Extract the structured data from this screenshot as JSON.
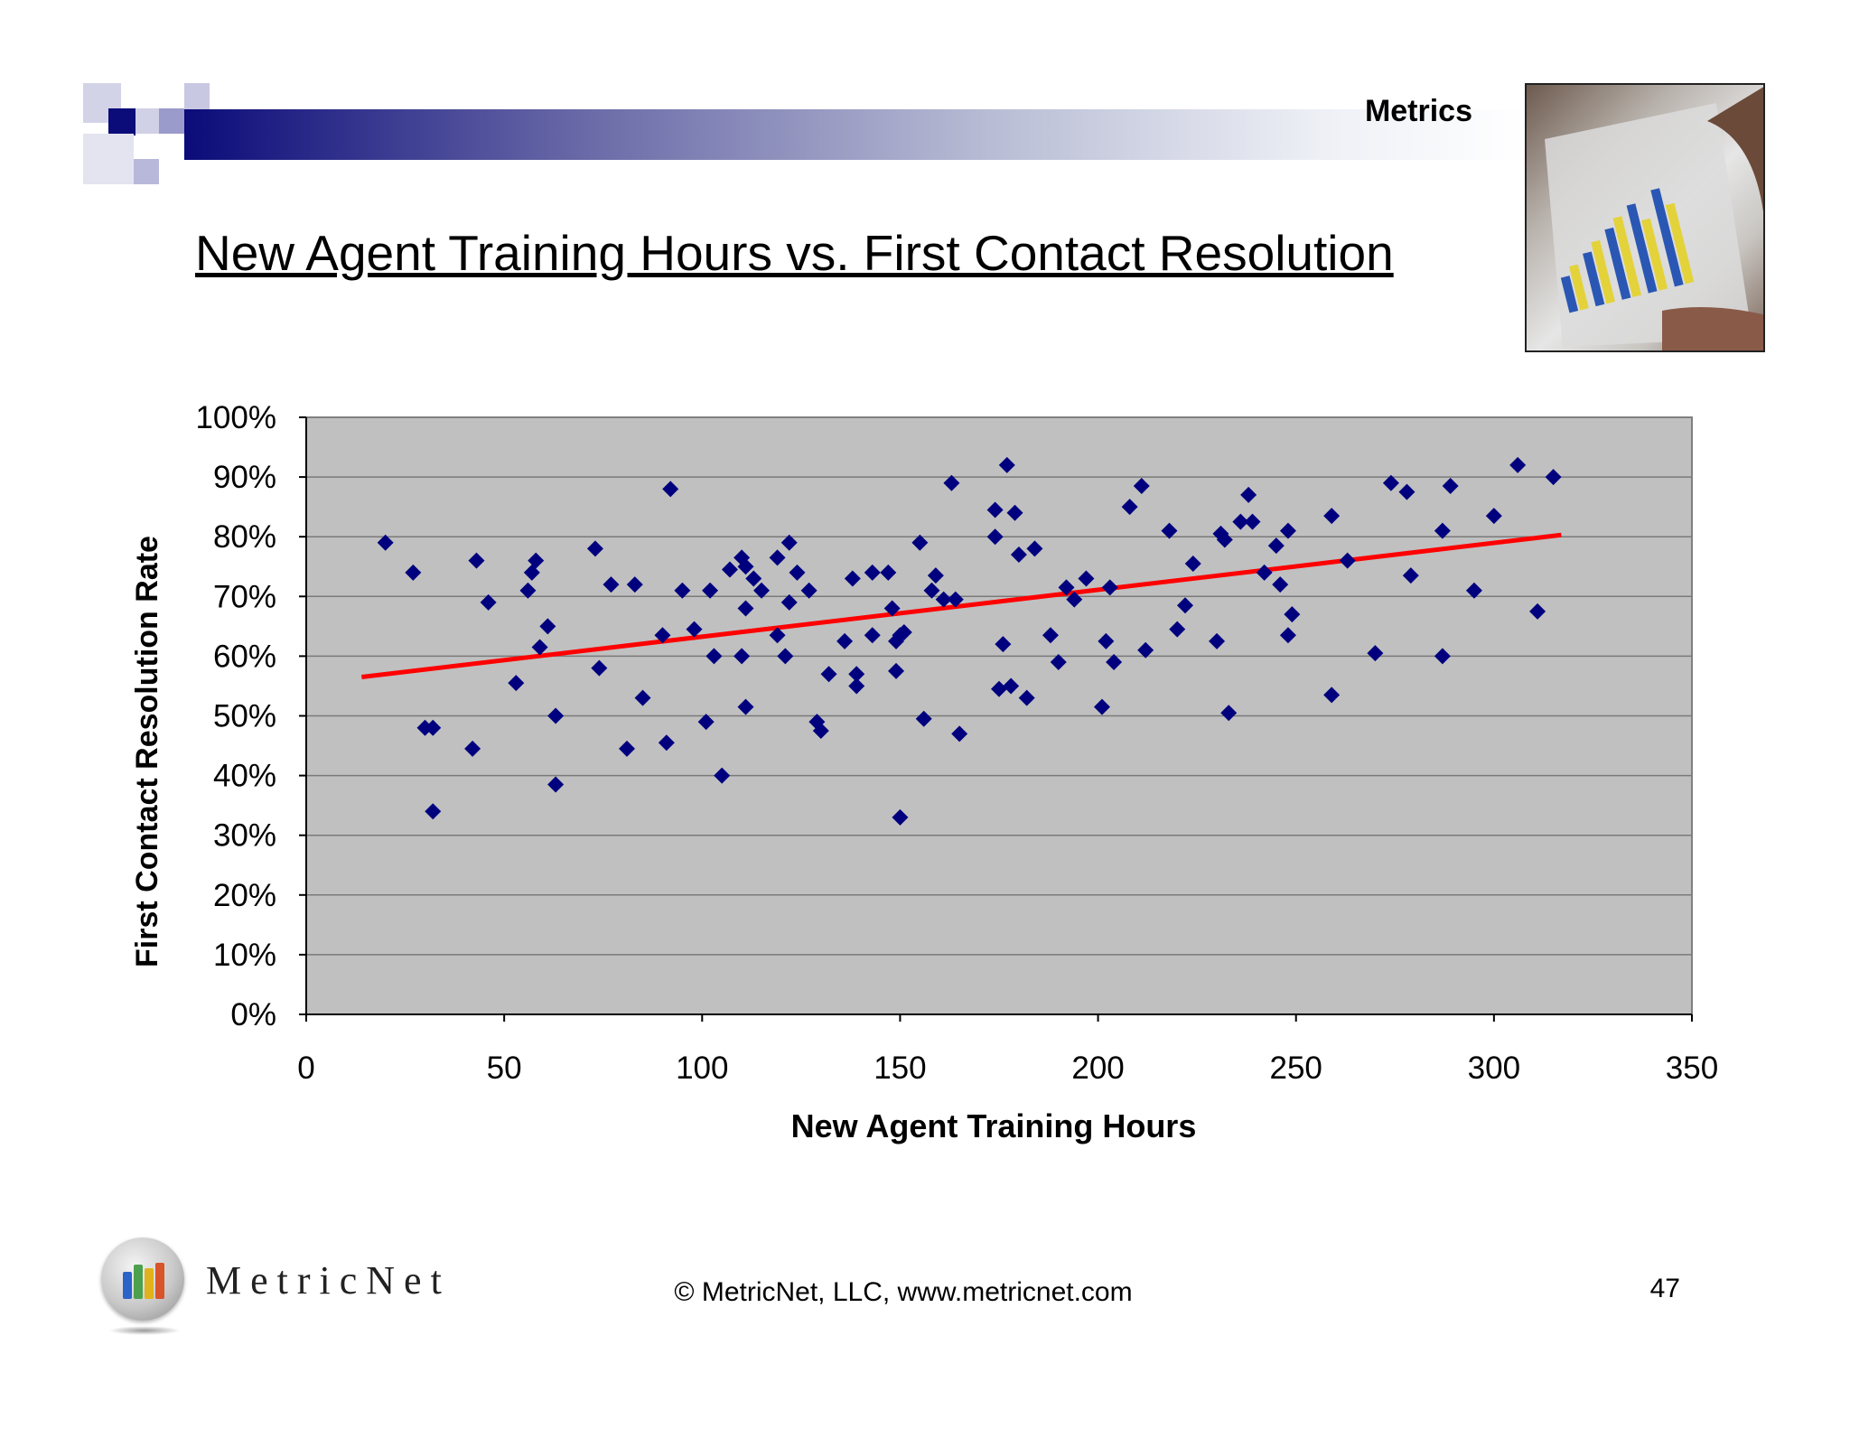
{
  "header": {
    "section_label": "Metrics"
  },
  "title": "New Agent Training Hours vs. First Contact Resolution",
  "footer": {
    "copyright": "© MetricNet, LLC, www.metricnet.com",
    "page_number": "47",
    "brand": "MetricNet"
  },
  "colors": {
    "points": "#00007f",
    "trendline": "#ff0000",
    "plot_bg": "#c0c0c0",
    "header_start": "#0b0b7a"
  },
  "chart_data": {
    "type": "scatter",
    "xlabel": "New Agent Training Hours",
    "ylabel": "First Contact Resolution Rate",
    "xlim": [
      0,
      350
    ],
    "ylim": [
      0,
      100
    ],
    "x_ticks": [
      "0",
      "50",
      "100",
      "150",
      "200",
      "250",
      "300",
      "350"
    ],
    "y_ticks": [
      "0%",
      "10%",
      "20%",
      "30%",
      "40%",
      "50%",
      "60%",
      "70%",
      "80%",
      "90%",
      "100%"
    ],
    "grid": true,
    "legend": "none",
    "trendline": {
      "x": [
        14,
        317
      ],
      "y": [
        56.5,
        80.3
      ]
    },
    "points": [
      [
        20,
        79
      ],
      [
        27,
        74
      ],
      [
        30,
        48
      ],
      [
        32,
        48
      ],
      [
        32,
        34
      ],
      [
        42,
        44.5
      ],
      [
        43,
        76
      ],
      [
        46,
        69
      ],
      [
        53,
        55.5
      ],
      [
        56,
        71
      ],
      [
        57,
        74
      ],
      [
        58,
        76
      ],
      [
        59,
        61.5
      ],
      [
        61,
        65
      ],
      [
        63,
        50
      ],
      [
        63,
        38.5
      ],
      [
        73,
        78
      ],
      [
        74,
        58
      ],
      [
        77,
        72
      ],
      [
        81,
        44.5
      ],
      [
        83,
        72
      ],
      [
        85,
        53
      ],
      [
        90,
        63.5
      ],
      [
        91,
        45.5
      ],
      [
        92,
        88
      ],
      [
        95,
        71
      ],
      [
        98,
        64.5
      ],
      [
        101,
        49
      ],
      [
        102,
        71
      ],
      [
        103,
        60
      ],
      [
        105,
        40
      ],
      [
        107,
        74.5
      ],
      [
        110,
        76.5
      ],
      [
        110,
        60
      ],
      [
        111,
        75
      ],
      [
        111,
        68
      ],
      [
        111,
        51.5
      ],
      [
        113,
        73
      ],
      [
        115,
        71
      ],
      [
        119,
        76.5
      ],
      [
        119,
        63.5
      ],
      [
        121,
        60
      ],
      [
        122,
        69
      ],
      [
        122,
        79
      ],
      [
        124,
        74
      ],
      [
        127,
        71
      ],
      [
        129,
        49
      ],
      [
        130,
        47.5
      ],
      [
        132,
        57
      ],
      [
        136,
        62.5
      ],
      [
        138,
        73
      ],
      [
        139,
        55
      ],
      [
        139,
        57
      ],
      [
        143,
        74
      ],
      [
        143,
        63.5
      ],
      [
        147,
        74
      ],
      [
        148,
        68
      ],
      [
        149,
        62.5
      ],
      [
        149,
        57.5
      ],
      [
        150,
        33
      ],
      [
        150,
        63.5
      ],
      [
        151,
        64
      ],
      [
        155,
        79
      ],
      [
        156,
        49.5
      ],
      [
        158,
        71
      ],
      [
        159,
        73.5
      ],
      [
        161,
        69.5
      ],
      [
        163,
        89
      ],
      [
        164,
        69.5
      ],
      [
        165,
        47
      ],
      [
        174,
        80
      ],
      [
        174,
        84.5
      ],
      [
        175,
        54.5
      ],
      [
        176,
        62
      ],
      [
        177,
        92
      ],
      [
        178,
        55
      ],
      [
        179,
        84
      ],
      [
        180,
        77
      ],
      [
        182,
        53
      ],
      [
        184,
        78
      ],
      [
        188,
        63.5
      ],
      [
        190,
        59
      ],
      [
        192,
        71.5
      ],
      [
        194,
        69.5
      ],
      [
        197,
        73
      ],
      [
        201,
        51.5
      ],
      [
        202,
        62.5
      ],
      [
        203,
        71.5
      ],
      [
        204,
        59
      ],
      [
        208,
        85
      ],
      [
        211,
        88.5
      ],
      [
        212,
        61
      ],
      [
        218,
        81
      ],
      [
        220,
        64.5
      ],
      [
        222,
        68.5
      ],
      [
        224,
        75.5
      ],
      [
        230,
        62.5
      ],
      [
        231,
        80.5
      ],
      [
        232,
        79.5
      ],
      [
        233,
        50.5
      ],
      [
        236,
        82.5
      ],
      [
        238,
        87
      ],
      [
        239,
        82.5
      ],
      [
        242,
        74
      ],
      [
        245,
        78.5
      ],
      [
        246,
        72
      ],
      [
        248,
        81
      ],
      [
        248,
        63.5
      ],
      [
        249,
        67
      ],
      [
        259,
        83.5
      ],
      [
        259,
        53.5
      ],
      [
        263,
        76
      ],
      [
        270,
        60.5
      ],
      [
        274,
        89
      ],
      [
        278,
        87.5
      ],
      [
        279,
        73.5
      ],
      [
        287,
        81
      ],
      [
        287,
        60
      ],
      [
        289,
        88.5
      ],
      [
        295,
        71
      ],
      [
        300,
        83.5
      ],
      [
        306,
        92
      ],
      [
        311,
        67.5
      ],
      [
        315,
        90
      ]
    ]
  }
}
